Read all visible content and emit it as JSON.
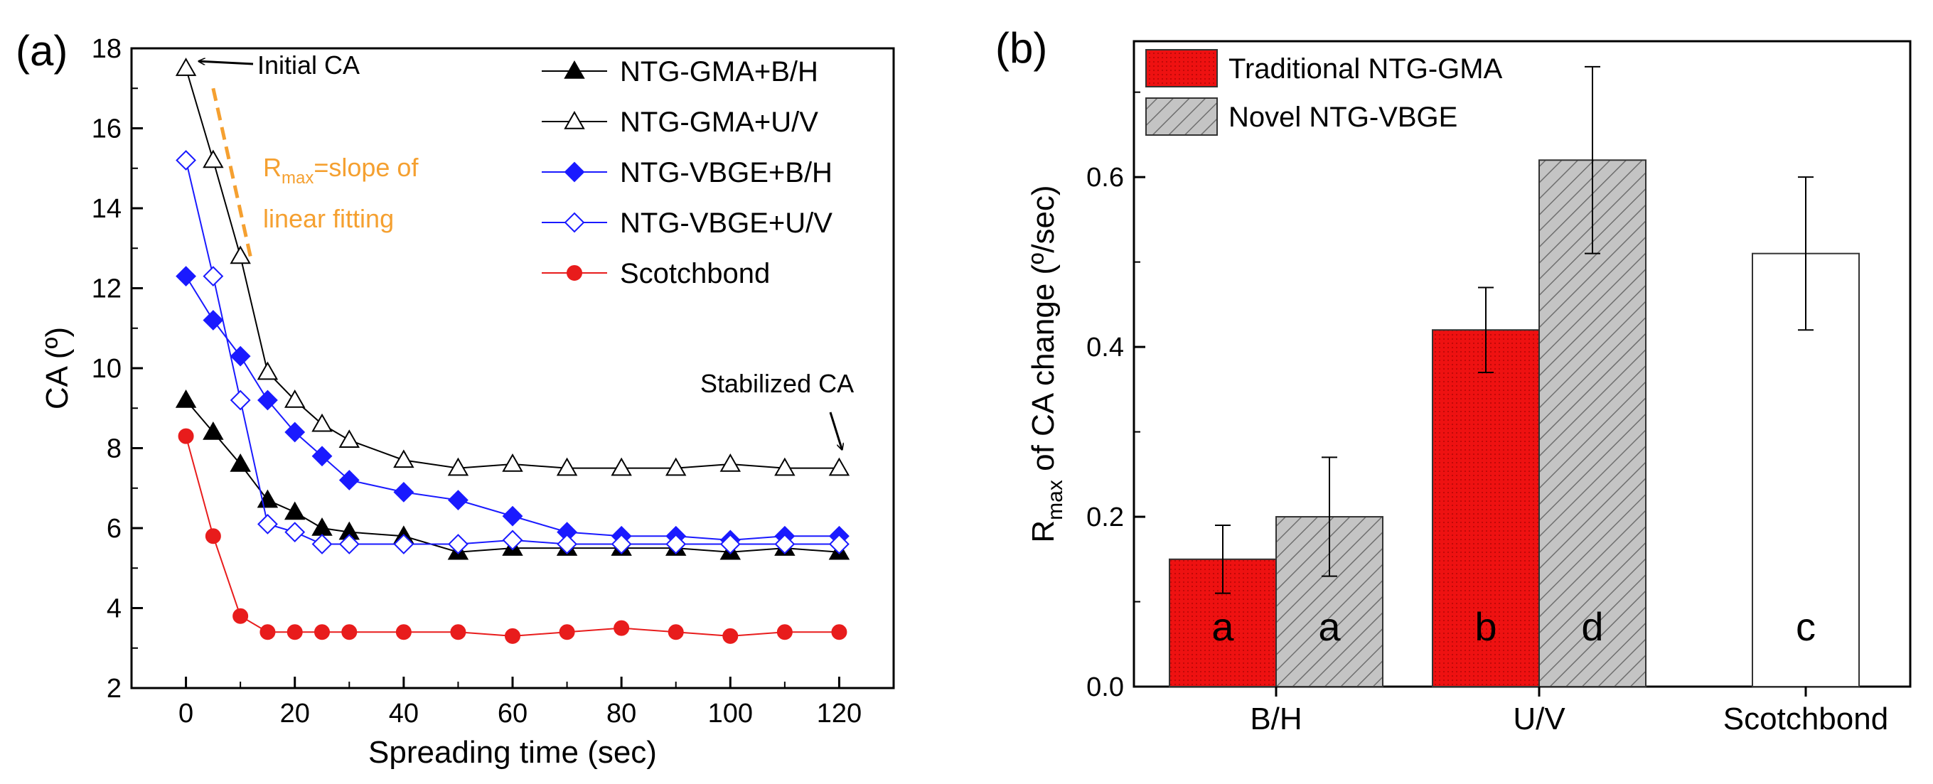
{
  "chart_data": [
    {
      "panel": "(a)",
      "type": "line",
      "xlabel": "Spreading time (sec)",
      "ylabel": "CA (º)",
      "xlim": [
        -10,
        130
      ],
      "ylim": [
        2,
        18
      ],
      "xticks": [
        0,
        20,
        40,
        60,
        80,
        100,
        120
      ],
      "yticks": [
        2,
        4,
        6,
        8,
        10,
        12,
        14,
        16,
        18
      ],
      "x": [
        0,
        5,
        10,
        15,
        20,
        25,
        30,
        40,
        50,
        60,
        70,
        80,
        90,
        100,
        110,
        120
      ],
      "series": [
        {
          "name": "NTG-GMA+B/H",
          "color": "#000000",
          "marker": "triangle",
          "filled": true,
          "values": [
            9.2,
            8.4,
            7.6,
            6.7,
            6.4,
            6.0,
            5.9,
            5.8,
            5.4,
            5.5,
            5.5,
            5.5,
            5.5,
            5.4,
            5.5,
            5.4
          ]
        },
        {
          "name": "NTG-GMA+U/V",
          "color": "#000000",
          "marker": "triangle",
          "filled": false,
          "values": [
            17.5,
            15.2,
            12.8,
            9.9,
            9.2,
            8.6,
            8.2,
            7.7,
            7.5,
            7.6,
            7.5,
            7.5,
            7.5,
            7.6,
            7.5,
            7.5
          ]
        },
        {
          "name": "NTG-VBGE+B/H",
          "color": "#1a1aff",
          "marker": "diamond",
          "filled": true,
          "values": [
            12.3,
            11.2,
            10.3,
            9.2,
            8.4,
            7.8,
            7.2,
            6.9,
            6.7,
            6.3,
            5.9,
            5.8,
            5.8,
            5.7,
            5.8,
            5.8
          ]
        },
        {
          "name": "NTG-VBGE+U/V",
          "color": "#1a1aff",
          "marker": "diamond",
          "filled": false,
          "values": [
            15.2,
            12.3,
            9.2,
            6.1,
            5.9,
            5.6,
            5.6,
            5.6,
            5.6,
            5.7,
            5.6,
            5.6,
            5.6,
            5.6,
            5.6,
            5.6
          ]
        },
        {
          "name": "Scotchbond",
          "color": "#e81c1c",
          "marker": "circle",
          "filled": true,
          "values": [
            8.3,
            5.8,
            3.8,
            3.4,
            3.4,
            3.4,
            3.4,
            3.4,
            3.4,
            3.3,
            3.4,
            3.5,
            3.4,
            3.3,
            3.4,
            3.4
          ]
        }
      ],
      "annotations": {
        "initial": "Initial CA",
        "stabilized": "Stabilized CA",
        "rmax_prefix": "R",
        "rmax_sub": "max",
        "rmax_rest": "=slope of",
        "rmax_line2": "linear fitting"
      },
      "annotation_color": "#f5a030",
      "fit_line": {
        "x": [
          5,
          12
        ],
        "y": [
          17.0,
          12.7
        ]
      },
      "arrow_targets": {
        "initial": {
          "x": 0,
          "y": 17.5
        },
        "stabilized": {
          "x": 120,
          "y": 7.5
        }
      }
    },
    {
      "panel": "(b)",
      "type": "bar",
      "ylabel_prefix": "R",
      "ylabel_sub": "max",
      "ylabel_rest": " of CA change (º/sec)",
      "categories": [
        "B/H",
        "U/V",
        "Scotchbond"
      ],
      "ylim": [
        0,
        0.76
      ],
      "yticks": [
        "0.0",
        "0.2",
        "0.4",
        "0.6"
      ],
      "series": [
        {
          "name": "Traditional NTG-GMA",
          "color": "#ee1111",
          "pattern": "dotted-red",
          "values": [
            0.15,
            0.42,
            null
          ],
          "errors": [
            0.04,
            0.05,
            null
          ],
          "letters": [
            "a",
            "b",
            null
          ]
        },
        {
          "name": "Novel NTG-VBGE",
          "color": "#bdbdbd",
          "pattern": "hatch",
          "values": [
            0.2,
            0.62,
            null
          ],
          "errors": [
            0.07,
            0.11,
            null
          ],
          "letters": [
            "a",
            "d",
            null
          ]
        },
        {
          "name": "Scotchbond",
          "color": "#ffffff",
          "pattern": "none",
          "values": [
            null,
            null,
            0.51
          ],
          "errors": [
            null,
            null,
            0.09
          ],
          "letters": [
            null,
            null,
            "c"
          ]
        }
      ]
    }
  ]
}
